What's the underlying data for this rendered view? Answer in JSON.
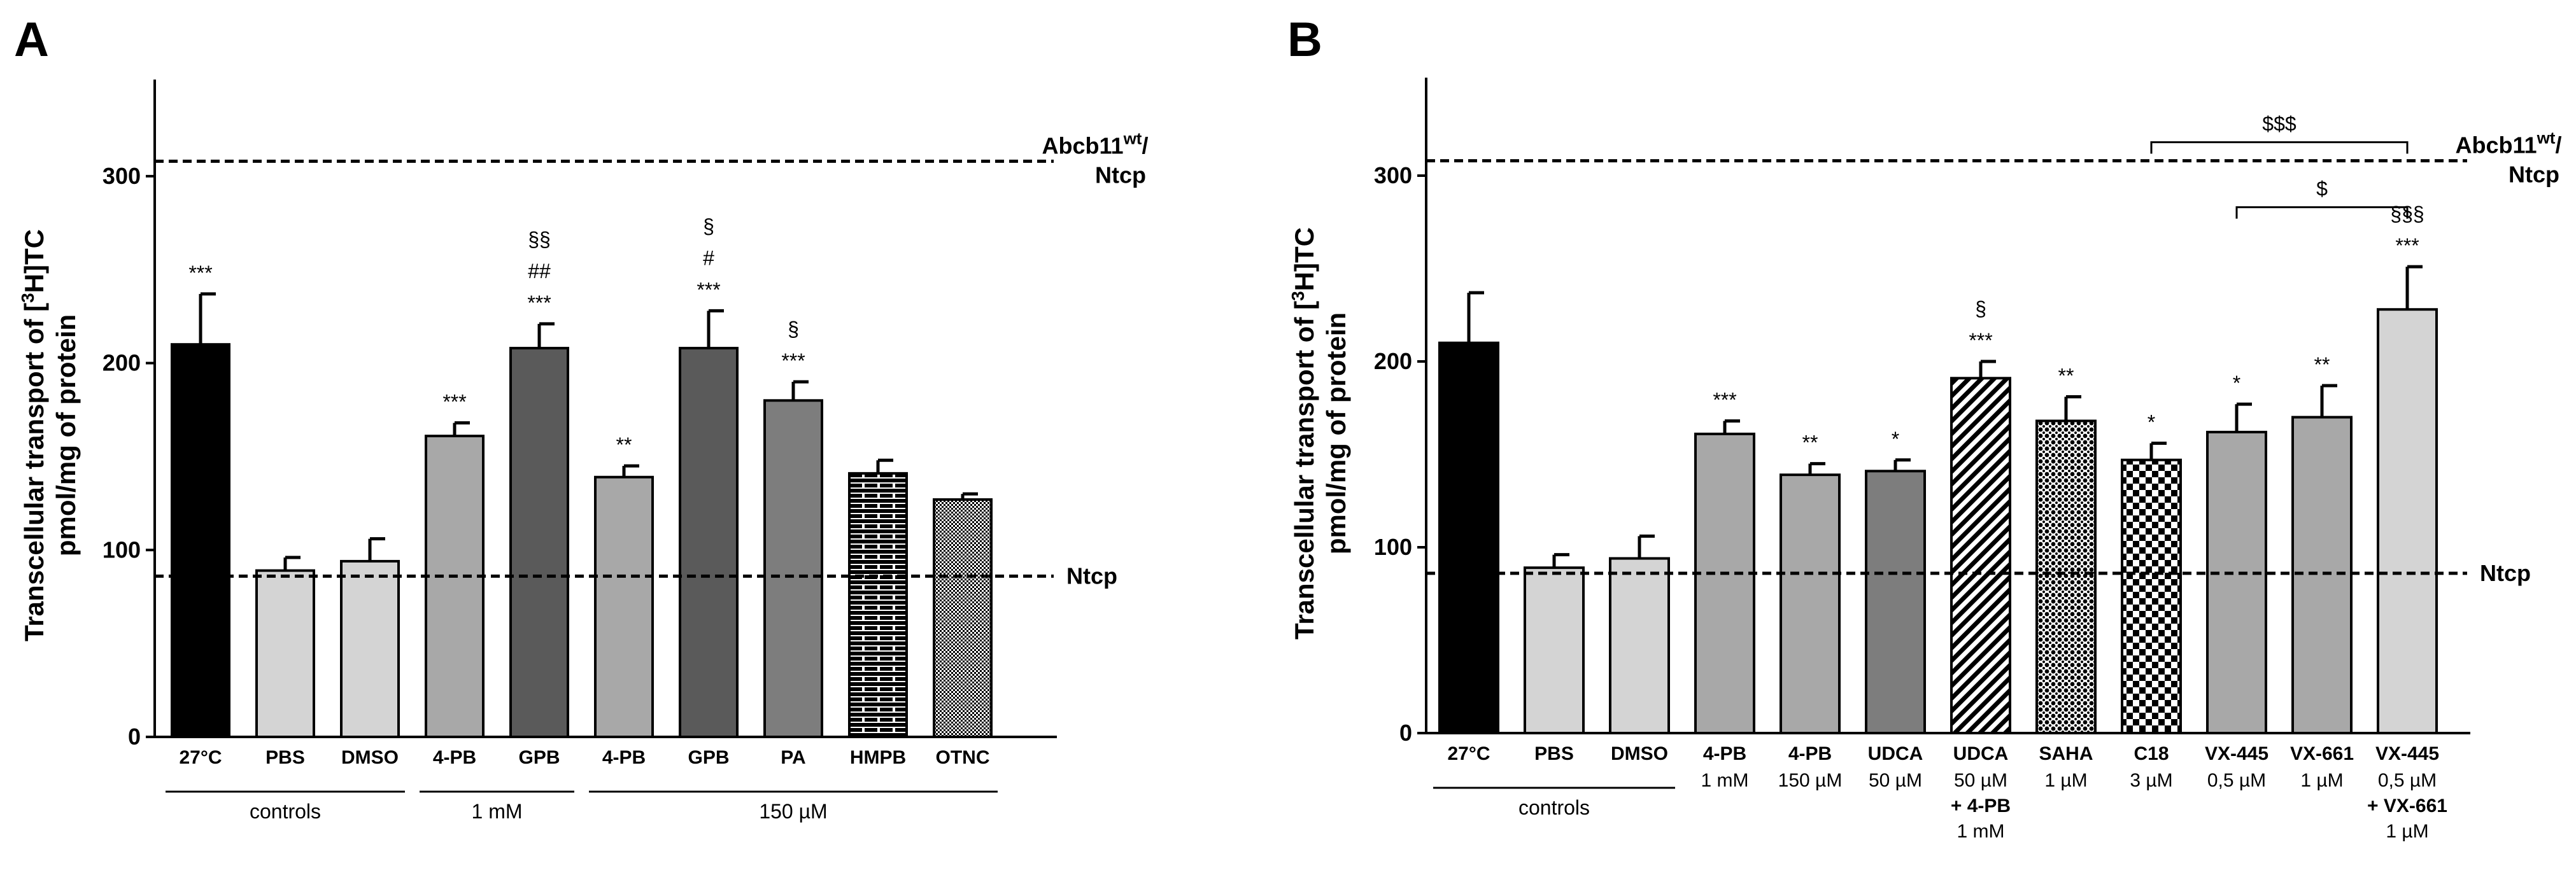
{
  "chart_data": [
    {
      "panel": "A",
      "type": "bar",
      "ylabel_line1": "Transcellular transport of [",
      "ylabel_sup": "3",
      "ylabel_line1b": "H]TC",
      "ylabel_line2": "pmol/mg of protein",
      "ylim": [
        0,
        350
      ],
      "yticks": [
        0,
        100,
        200,
        300
      ],
      "reference_lines": [
        {
          "label_main": "Abcb11",
          "label_sup": "wt",
          "label_tail": "/",
          "label_line2": "Ntcp",
          "value": 308
        },
        {
          "label_main": "Ntcp",
          "value": 86
        }
      ],
      "bars": [
        {
          "label": "27°C",
          "value": 210,
          "err": 27,
          "sig": [
            "***"
          ],
          "color": "#000000",
          "pattern": "none"
        },
        {
          "label": "PBS",
          "value": 89,
          "err": 7,
          "sig": [],
          "color": "#d4d4d4",
          "pattern": "none"
        },
        {
          "label": "DMSO",
          "value": 94,
          "err": 12,
          "sig": [],
          "color": "#d4d4d4",
          "pattern": "none"
        },
        {
          "label": "4-PB",
          "value": 161,
          "err": 7,
          "sig": [
            "***"
          ],
          "color": "#a8a8a8",
          "pattern": "none"
        },
        {
          "label": "GPB",
          "value": 208,
          "err": 13,
          "sig": [
            "§§",
            "##",
            "***"
          ],
          "color": "#5a5a5a",
          "pattern": "none"
        },
        {
          "label": "4-PB",
          "value": 139,
          "err": 6,
          "sig": [
            "**"
          ],
          "color": "#a8a8a8",
          "pattern": "none"
        },
        {
          "label": "GPB",
          "value": 208,
          "err": 20,
          "sig": [
            "§",
            "#",
            "***"
          ],
          "color": "#5a5a5a",
          "pattern": "none"
        },
        {
          "label": "PA",
          "value": 180,
          "err": 10,
          "sig": [
            "§",
            "***"
          ],
          "color": "#7d7d7d",
          "pattern": "none"
        },
        {
          "label": "HMPB",
          "value": 141,
          "err": 7,
          "sig": [],
          "color": "#ffffff",
          "pattern": "brick"
        },
        {
          "label": "OTNC",
          "value": 127,
          "err": 3,
          "sig": [],
          "color": "#ffffff",
          "pattern": "dots"
        }
      ],
      "groups": [
        {
          "label": "controls",
          "from": 0,
          "to": 2
        },
        {
          "label": "1 mM",
          "from": 3,
          "to": 4
        },
        {
          "label": "150 µM",
          "from": 5,
          "to": 9
        }
      ],
      "brackets": []
    },
    {
      "panel": "B",
      "type": "bar",
      "ylabel_line1": "Transcellular transport of [",
      "ylabel_sup": "3",
      "ylabel_line1b": "H]TC",
      "ylabel_line2": "pmol/mg of protein",
      "ylim": [
        0,
        350
      ],
      "yticks": [
        0,
        100,
        200,
        300
      ],
      "reference_lines": [
        {
          "label_main": "Abcb11",
          "label_sup": "wt",
          "label_tail": "/",
          "label_line2": "Ntcp",
          "value": 308
        },
        {
          "label_main": "Ntcp",
          "value": 86
        }
      ],
      "bars": [
        {
          "label": "27°C",
          "value": 210,
          "err": 27,
          "sig": [],
          "color": "#000000",
          "pattern": "none",
          "sub": []
        },
        {
          "label": "PBS",
          "value": 89,
          "err": 7,
          "sig": [],
          "color": "#d4d4d4",
          "pattern": "none",
          "sub": []
        },
        {
          "label": "DMSO",
          "value": 94,
          "err": 12,
          "sig": [],
          "color": "#d4d4d4",
          "pattern": "none",
          "sub": []
        },
        {
          "label": "4-PB",
          "value": 161,
          "err": 7,
          "sig": [
            "***"
          ],
          "color": "#a8a8a8",
          "pattern": "none",
          "sub": [
            "1 mM"
          ]
        },
        {
          "label": "4-PB",
          "value": 139,
          "err": 6,
          "sig": [
            "**"
          ],
          "color": "#a8a8a8",
          "pattern": "none",
          "sub": [
            "150 µM"
          ]
        },
        {
          "label": "UDCA",
          "value": 141,
          "err": 6,
          "sig": [
            "*"
          ],
          "color": "#7d7d7d",
          "pattern": "none",
          "sub": [
            "50 µM"
          ]
        },
        {
          "label": "UDCA",
          "value": 191,
          "err": 9,
          "sig": [
            "§",
            "***"
          ],
          "color": "#ffffff",
          "pattern": "diag",
          "sub": [
            "50 µM",
            "+ 4-PB",
            "1 mM"
          ],
          "sub_bold": [
            false,
            true,
            false
          ]
        },
        {
          "label": "SAHA",
          "value": 168,
          "err": 13,
          "sig": [
            "**"
          ],
          "color": "#ffffff",
          "pattern": "weave",
          "sub": [
            "1 µM"
          ]
        },
        {
          "label": "C18",
          "value": 147,
          "err": 9,
          "sig": [
            "*"
          ],
          "color": "#ffffff",
          "pattern": "checker",
          "sub": [
            "3 µM"
          ]
        },
        {
          "label": "VX-445",
          "value": 162,
          "err": 15,
          "sig": [
            "*"
          ],
          "color": "#a8a8a8",
          "pattern": "none",
          "sub": [
            "0,5 µM"
          ]
        },
        {
          "label": "VX-661",
          "value": 170,
          "err": 17,
          "sig": [
            "**"
          ],
          "color": "#a8a8a8",
          "pattern": "none",
          "sub": [
            "1 µM"
          ]
        },
        {
          "label": "VX-445",
          "value": 228,
          "err": 23,
          "sig": [
            "§§§",
            "***"
          ],
          "color": "#d4d4d4",
          "pattern": "none",
          "sub": [
            "0,5 µM",
            "+ VX-661",
            "1 µM"
          ],
          "sub_bold": [
            false,
            true,
            false
          ]
        }
      ],
      "groups": [
        {
          "label": "controls",
          "from": 0,
          "to": 2
        }
      ],
      "brackets": [
        {
          "label": "$$$",
          "from": 8,
          "to": 11,
          "value": 318
        },
        {
          "label": "$",
          "from": 9,
          "to": 11,
          "value": 283
        }
      ]
    }
  ]
}
